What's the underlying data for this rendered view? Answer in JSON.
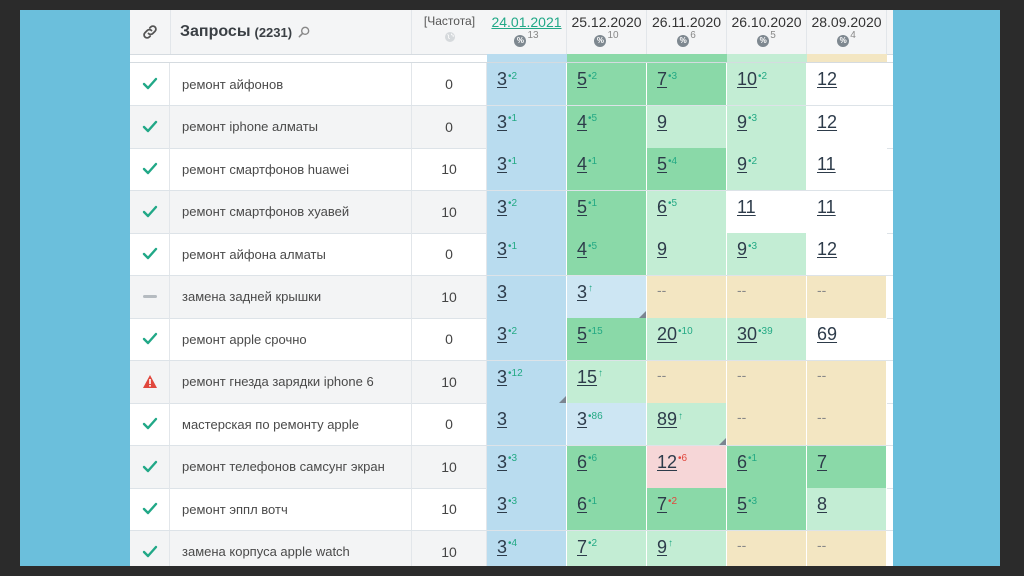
{
  "header": {
    "title": "Запросы",
    "count": "(2231)",
    "freq_label": "[Частота]",
    "dates": [
      {
        "date": "24.01.2021",
        "pct": "13",
        "active": true
      },
      {
        "date": "25.12.2020",
        "pct": "10",
        "active": false
      },
      {
        "date": "26.11.2020",
        "pct": "6",
        "active": false
      },
      {
        "date": "26.10.2020",
        "pct": "5",
        "active": false
      },
      {
        "date": "28.09.2020",
        "pct": "4",
        "active": false
      }
    ]
  },
  "colors": {
    "accent": "#21a887",
    "check": "#21a887",
    "warning": "#e0473d",
    "frame": "#6bbfdc"
  },
  "rows": [
    {
      "status": "check",
      "query": "ремонт айфонов",
      "freq": "0",
      "cells": [
        {
          "v": "3",
          "d": "2",
          "dir": "up",
          "bg": "blue"
        },
        {
          "v": "5",
          "d": "2",
          "dir": "up",
          "bg": "green"
        },
        {
          "v": "7",
          "d": "3",
          "dir": "up",
          "bg": "green"
        },
        {
          "v": "10",
          "d": "2",
          "dir": "up",
          "bg": "lgreen"
        },
        {
          "v": "12",
          "d": "",
          "dir": "",
          "bg": "white"
        }
      ]
    },
    {
      "status": "check",
      "query": "ремонт iphone алматы",
      "freq": "0",
      "cells": [
        {
          "v": "3",
          "d": "1",
          "dir": "up",
          "bg": "blue"
        },
        {
          "v": "4",
          "d": "5",
          "dir": "up",
          "bg": "green"
        },
        {
          "v": "9",
          "d": "",
          "dir": "",
          "bg": "lgreen"
        },
        {
          "v": "9",
          "d": "3",
          "dir": "up",
          "bg": "lgreen"
        },
        {
          "v": "12",
          "d": "",
          "dir": "",
          "bg": "white"
        }
      ]
    },
    {
      "status": "check",
      "query": "ремонт смартфонов huawei",
      "freq": "10",
      "cells": [
        {
          "v": "3",
          "d": "1",
          "dir": "up",
          "bg": "blue"
        },
        {
          "v": "4",
          "d": "1",
          "dir": "up",
          "bg": "green"
        },
        {
          "v": "5",
          "d": "4",
          "dir": "up",
          "bg": "green"
        },
        {
          "v": "9",
          "d": "2",
          "dir": "up",
          "bg": "lgreen"
        },
        {
          "v": "11",
          "d": "",
          "dir": "",
          "bg": "white"
        }
      ]
    },
    {
      "status": "check",
      "query": "ремонт смартфонов хуавей",
      "freq": "10",
      "cells": [
        {
          "v": "3",
          "d": "2",
          "dir": "up",
          "bg": "blue"
        },
        {
          "v": "5",
          "d": "1",
          "dir": "up",
          "bg": "green"
        },
        {
          "v": "6",
          "d": "5",
          "dir": "up",
          "bg": "lgreen"
        },
        {
          "v": "11",
          "d": "",
          "dir": "",
          "bg": "white"
        },
        {
          "v": "11",
          "d": "",
          "dir": "",
          "bg": "white"
        }
      ]
    },
    {
      "status": "check",
      "query": "ремонт айфона алматы",
      "freq": "0",
      "cells": [
        {
          "v": "3",
          "d": "1",
          "dir": "up",
          "bg": "blue"
        },
        {
          "v": "4",
          "d": "5",
          "dir": "up",
          "bg": "green"
        },
        {
          "v": "9",
          "d": "",
          "dir": "",
          "bg": "lgreen"
        },
        {
          "v": "9",
          "d": "3",
          "dir": "up",
          "bg": "lgreen"
        },
        {
          "v": "12",
          "d": "",
          "dir": "",
          "bg": "white"
        }
      ]
    },
    {
      "status": "dash",
      "query": "замена задней крышки",
      "freq": "10",
      "cells": [
        {
          "v": "3",
          "d": "",
          "dir": "",
          "bg": "blue"
        },
        {
          "v": "3",
          "d": "↑",
          "dir": "up",
          "bg": "lblue",
          "corner": true
        },
        {
          "v": "--",
          "d": "",
          "dir": "",
          "bg": "yellow"
        },
        {
          "v": "--",
          "d": "",
          "dir": "",
          "bg": "yellow"
        },
        {
          "v": "--",
          "d": "",
          "dir": "",
          "bg": "yellow"
        }
      ]
    },
    {
      "status": "check",
      "query": "ремонт apple срочно",
      "freq": "0",
      "cells": [
        {
          "v": "3",
          "d": "2",
          "dir": "up",
          "bg": "blue"
        },
        {
          "v": "5",
          "d": "15",
          "dir": "up",
          "bg": "green"
        },
        {
          "v": "20",
          "d": "10",
          "dir": "up",
          "bg": "lgreen"
        },
        {
          "v": "30",
          "d": "39",
          "dir": "up",
          "bg": "lgreen"
        },
        {
          "v": "69",
          "d": "",
          "dir": "",
          "bg": "white"
        }
      ]
    },
    {
      "status": "warn",
      "query": "ремонт гнезда зарядки iphone 6",
      "freq": "10",
      "cells": [
        {
          "v": "3",
          "d": "12",
          "dir": "up",
          "bg": "blue",
          "corner": true
        },
        {
          "v": "15",
          "d": "↑",
          "dir": "up",
          "bg": "lgreen"
        },
        {
          "v": "--",
          "d": "",
          "dir": "",
          "bg": "yellow"
        },
        {
          "v": "--",
          "d": "",
          "dir": "",
          "bg": "yellow"
        },
        {
          "v": "--",
          "d": "",
          "dir": "",
          "bg": "yellow"
        }
      ]
    },
    {
      "status": "check",
      "query": "мастерская по ремонту apple",
      "freq": "0",
      "cells": [
        {
          "v": "3",
          "d": "",
          "dir": "",
          "bg": "blue"
        },
        {
          "v": "3",
          "d": "86",
          "dir": "up",
          "bg": "lblue"
        },
        {
          "v": "89",
          "d": "↑",
          "dir": "up",
          "bg": "lgreen",
          "corner": true
        },
        {
          "v": "--",
          "d": "",
          "dir": "",
          "bg": "yellow"
        },
        {
          "v": "--",
          "d": "",
          "dir": "",
          "bg": "yellow"
        }
      ]
    },
    {
      "status": "check",
      "query": "ремонт телефонов самсунг экран",
      "freq": "10",
      "cells": [
        {
          "v": "3",
          "d": "3",
          "dir": "up",
          "bg": "blue"
        },
        {
          "v": "6",
          "d": "6",
          "dir": "up",
          "bg": "green"
        },
        {
          "v": "12",
          "d": "6",
          "dir": "down",
          "bg": "pink"
        },
        {
          "v": "6",
          "d": "1",
          "dir": "up",
          "bg": "green"
        },
        {
          "v": "7",
          "d": "",
          "dir": "",
          "bg": "green"
        }
      ]
    },
    {
      "status": "check",
      "query": "ремонт эппл вотч",
      "freq": "10",
      "cells": [
        {
          "v": "3",
          "d": "3",
          "dir": "up",
          "bg": "blue"
        },
        {
          "v": "6",
          "d": "1",
          "dir": "up",
          "bg": "green"
        },
        {
          "v": "7",
          "d": "2",
          "dir": "down",
          "bg": "green"
        },
        {
          "v": "5",
          "d": "3",
          "dir": "up",
          "bg": "green"
        },
        {
          "v": "8",
          "d": "",
          "dir": "",
          "bg": "lgreen"
        }
      ]
    },
    {
      "status": "check",
      "query": "замена корпуса apple watch",
      "freq": "10",
      "cells": [
        {
          "v": "3",
          "d": "4",
          "dir": "up",
          "bg": "blue"
        },
        {
          "v": "7",
          "d": "2",
          "dir": "up",
          "bg": "lgreen"
        },
        {
          "v": "9",
          "d": "↑",
          "dir": "up",
          "bg": "lgreen"
        },
        {
          "v": "--",
          "d": "",
          "dir": "",
          "bg": "yellow"
        },
        {
          "v": "--",
          "d": "",
          "dir": "",
          "bg": "yellow"
        }
      ]
    }
  ]
}
